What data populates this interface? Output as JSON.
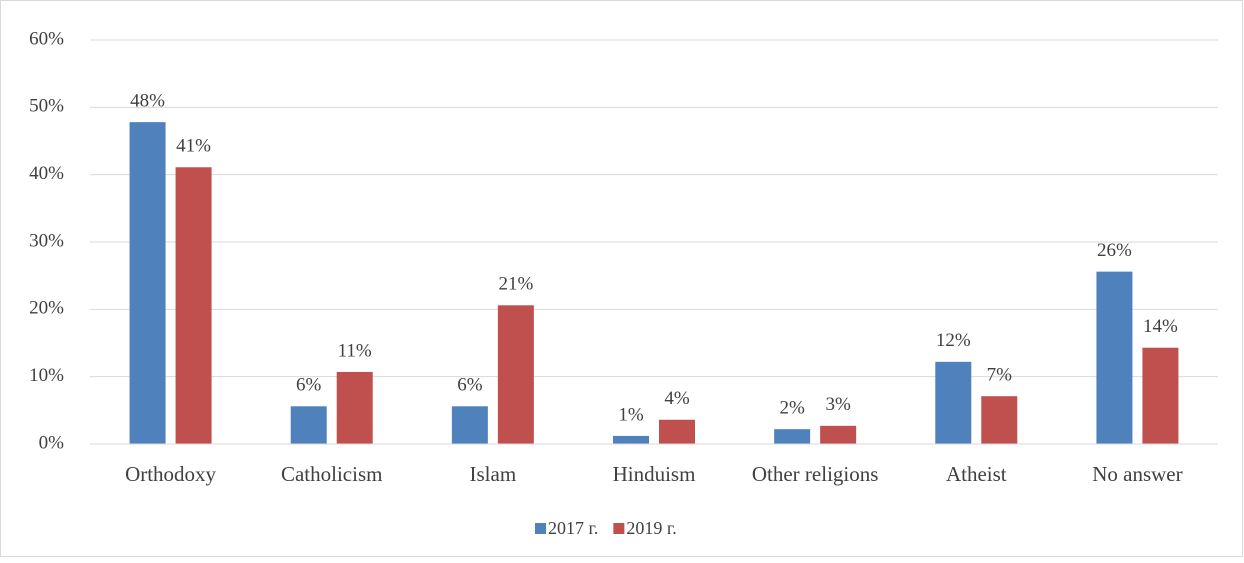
{
  "chart_data": {
    "type": "bar",
    "categories": [
      "Orthodoxy",
      "Catholicism",
      "Islam",
      "Hinduism",
      "Other religions",
      "Atheist",
      "No answer"
    ],
    "series": [
      {
        "name": "2017 г.",
        "color": "#4f81bd",
        "values": [
          47.8,
          5.6,
          5.6,
          1.2,
          2.2,
          12.2,
          25.6
        ],
        "value_labels": [
          "48%",
          "6%",
          "6%",
          "1%",
          "2%",
          "12%",
          "26%"
        ]
      },
      {
        "name": "2019 г.",
        "color": "#c0504d",
        "values": [
          41.1,
          10.7,
          20.6,
          3.6,
          2.7,
          7.1,
          14.3
        ],
        "value_labels": [
          "41%",
          "11%",
          "21%",
          "4%",
          "3%",
          "7%",
          "14%"
        ]
      }
    ],
    "ylim": [
      0,
      60
    ],
    "yticks": [
      {
        "value": 0,
        "label": "0%"
      },
      {
        "value": 10,
        "label": "10%"
      },
      {
        "value": 20,
        "label": "20%"
      },
      {
        "value": 30,
        "label": "30%"
      },
      {
        "value": 40,
        "label": "40%"
      },
      {
        "value": 50,
        "label": "50%"
      },
      {
        "value": 60,
        "label": "60%"
      }
    ],
    "grid": true,
    "legend": "bottom"
  }
}
